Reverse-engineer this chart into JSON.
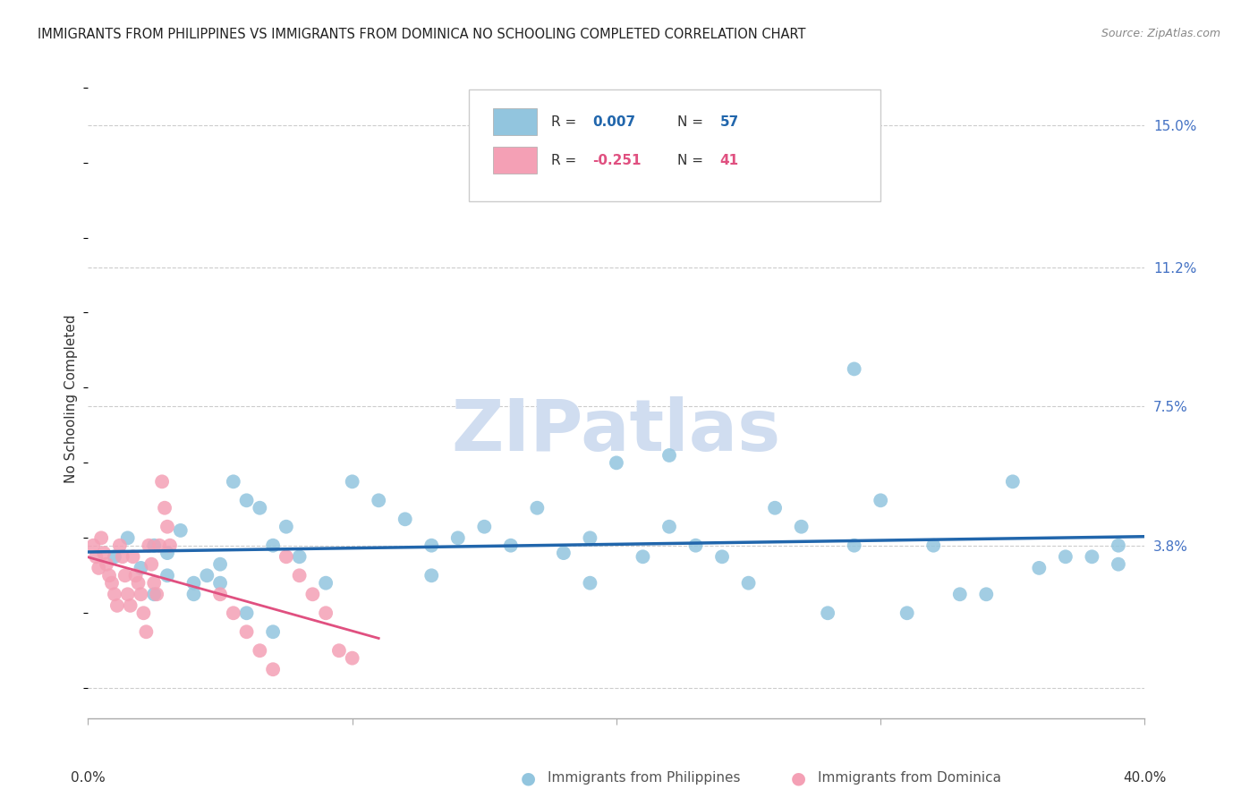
{
  "title": "IMMIGRANTS FROM PHILIPPINES VS IMMIGRANTS FROM DOMINICA NO SCHOOLING COMPLETED CORRELATION CHART",
  "source": "Source: ZipAtlas.com",
  "ylabel": "No Schooling Completed",
  "yticks": [
    0.0,
    0.038,
    0.075,
    0.112,
    0.15
  ],
  "ytick_labels": [
    "",
    "3.8%",
    "7.5%",
    "11.2%",
    "15.0%"
  ],
  "xlim": [
    0.0,
    0.4
  ],
  "ylim": [
    -0.008,
    0.162
  ],
  "blue_color": "#92c5de",
  "pink_color": "#f4a0b5",
  "blue_line_color": "#2166ac",
  "pink_line_color": "#e05080",
  "title_color": "#222222",
  "axis_label_color": "#4472c4",
  "blue_scatter_x": [
    0.01,
    0.015,
    0.02,
    0.025,
    0.03,
    0.035,
    0.04,
    0.045,
    0.05,
    0.055,
    0.06,
    0.065,
    0.07,
    0.075,
    0.08,
    0.09,
    0.1,
    0.11,
    0.12,
    0.13,
    0.14,
    0.15,
    0.16,
    0.17,
    0.18,
    0.19,
    0.2,
    0.21,
    0.22,
    0.23,
    0.24,
    0.25,
    0.26,
    0.27,
    0.28,
    0.29,
    0.3,
    0.31,
    0.32,
    0.33,
    0.34,
    0.35,
    0.36,
    0.37,
    0.38,
    0.39,
    0.025,
    0.03,
    0.04,
    0.05,
    0.06,
    0.07,
    0.13,
    0.19,
    0.22,
    0.29,
    0.39
  ],
  "blue_scatter_y": [
    0.035,
    0.04,
    0.032,
    0.038,
    0.036,
    0.042,
    0.028,
    0.03,
    0.033,
    0.055,
    0.05,
    0.048,
    0.038,
    0.043,
    0.035,
    0.028,
    0.055,
    0.05,
    0.045,
    0.038,
    0.04,
    0.043,
    0.038,
    0.048,
    0.036,
    0.04,
    0.06,
    0.035,
    0.043,
    0.038,
    0.035,
    0.028,
    0.048,
    0.043,
    0.02,
    0.038,
    0.05,
    0.02,
    0.038,
    0.025,
    0.025,
    0.055,
    0.032,
    0.035,
    0.035,
    0.038,
    0.025,
    0.03,
    0.025,
    0.028,
    0.02,
    0.015,
    0.03,
    0.028,
    0.062,
    0.085,
    0.033
  ],
  "pink_scatter_x": [
    0.002,
    0.003,
    0.004,
    0.005,
    0.006,
    0.007,
    0.008,
    0.009,
    0.01,
    0.011,
    0.012,
    0.013,
    0.014,
    0.015,
    0.016,
    0.017,
    0.018,
    0.019,
    0.02,
    0.021,
    0.022,
    0.023,
    0.024,
    0.025,
    0.026,
    0.027,
    0.028,
    0.029,
    0.03,
    0.031,
    0.05,
    0.055,
    0.06,
    0.065,
    0.07,
    0.075,
    0.08,
    0.085,
    0.09,
    0.095,
    0.1
  ],
  "pink_scatter_y": [
    0.038,
    0.035,
    0.032,
    0.04,
    0.036,
    0.033,
    0.03,
    0.028,
    0.025,
    0.022,
    0.038,
    0.035,
    0.03,
    0.025,
    0.022,
    0.035,
    0.03,
    0.028,
    0.025,
    0.02,
    0.015,
    0.038,
    0.033,
    0.028,
    0.025,
    0.038,
    0.055,
    0.048,
    0.043,
    0.038,
    0.025,
    0.02,
    0.015,
    0.01,
    0.005,
    0.035,
    0.03,
    0.025,
    0.02,
    0.01,
    0.008
  ],
  "watermark": "ZIPatlas",
  "watermark_color": "#d0ddf0",
  "grid_color": "#cccccc",
  "background_color": "#ffffff"
}
